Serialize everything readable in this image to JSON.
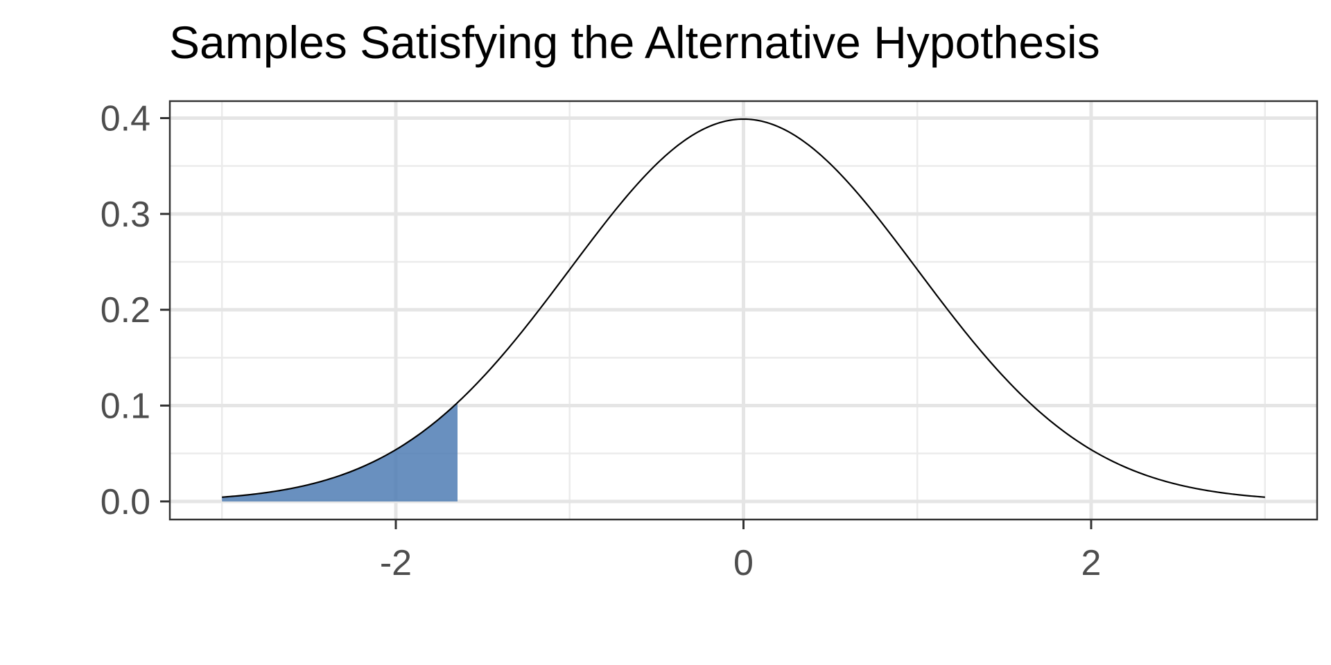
{
  "chart_data": {
    "type": "area",
    "title": "Samples Satisfying the Alternative Hypothesis",
    "xlabel": "",
    "ylabel": "",
    "xlim": [
      -3.3,
      3.3
    ],
    "ylim": [
      -0.0189,
      0.4177
    ],
    "x_ticks": [
      -2,
      0,
      2
    ],
    "x_tick_labels": [
      "-2",
      "0",
      "2"
    ],
    "y_ticks": [
      0.0,
      0.1,
      0.2,
      0.3,
      0.4
    ],
    "y_tick_labels": [
      "0.0",
      "0.1",
      "0.2",
      "0.3",
      "0.4"
    ],
    "grid": true,
    "legend": "none",
    "series": [
      {
        "kind": "line",
        "distribution": "standard normal density",
        "x_range": [
          -3,
          3
        ],
        "color": "#000000"
      },
      {
        "kind": "shaded area",
        "distribution": "standard normal density",
        "x_range": [
          -3,
          -1.645
        ],
        "color": "#4f7db4"
      }
    ],
    "colors": {
      "panel_border": "#333333",
      "grid_major": "#e5e5e5",
      "grid_minor": "#ebebeb",
      "tick_text": "#4d4d4d"
    }
  }
}
